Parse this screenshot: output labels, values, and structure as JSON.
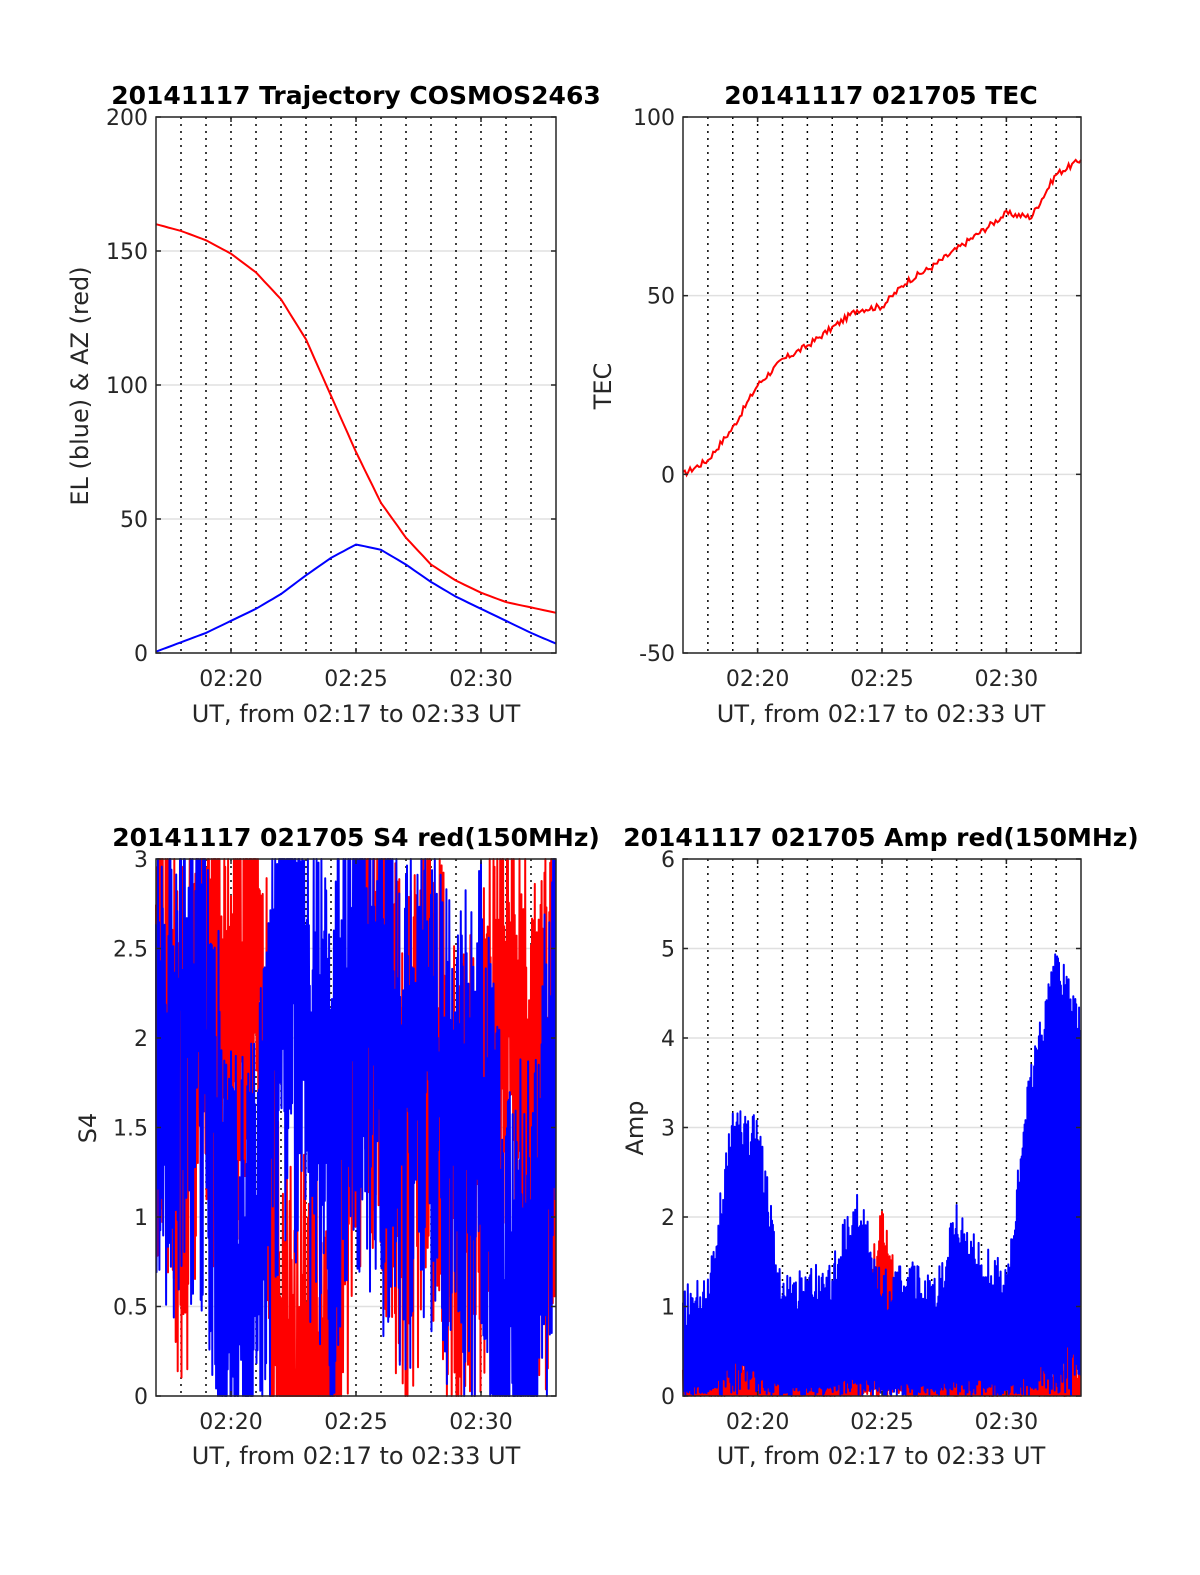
{
  "chart_data": [
    {
      "id": "trajectory",
      "type": "line",
      "title": "20141117 Trajectory COSMOS2463",
      "xlabel": "UT, from 02:17 to 02:33 UT",
      "ylabel": "EL (blue) & AZ (red)",
      "xlim": [
        "02:17",
        "02:33"
      ],
      "ylim": [
        0,
        200
      ],
      "xticks": [
        "02:20",
        "02:25",
        "02:30"
      ],
      "yticks": [
        0,
        50,
        100,
        150,
        200
      ],
      "grid": "dotted vertical lines every 1 min; horizontal gridlines at y ticks",
      "x_minutes": [
        "02:17",
        "02:18",
        "02:19",
        "02:20",
        "02:21",
        "02:22",
        "02:23",
        "02:24",
        "02:25",
        "02:26",
        "02:27",
        "02:28",
        "02:29",
        "02:30",
        "02:31",
        "02:32",
        "02:33"
      ],
      "series": [
        {
          "color": "#ff0000",
          "values": [
            160,
            157.5,
            154,
            149,
            142,
            132,
            117,
            96,
            75,
            56,
            43,
            33,
            27,
            22.5,
            19,
            17,
            15
          ]
        },
        {
          "color": "#0000ff",
          "values": [
            0.5,
            4,
            7.5,
            12,
            16.5,
            22,
            29,
            35.5,
            40.5,
            38.5,
            33,
            26.5,
            21,
            16.5,
            12,
            7.5,
            3.5
          ]
        }
      ]
    },
    {
      "id": "tec",
      "type": "line",
      "title": "20141117 021705 TEC",
      "xlabel": "UT, from 02:17 to 02:33 UT",
      "ylabel": "TEC",
      "xlim": [
        "02:17",
        "02:33"
      ],
      "ylim": [
        -50,
        100
      ],
      "xticks": [
        "02:20",
        "02:25",
        "02:30"
      ],
      "yticks": [
        -50,
        0,
        50,
        100
      ],
      "grid": "dotted vertical lines every 1 min; horizontal gridlines at y ticks",
      "x_minutes": [
        "02:17",
        "02:18",
        "02:19",
        "02:20",
        "02:21",
        "02:22",
        "02:23",
        "02:24",
        "02:25",
        "02:26",
        "02:27",
        "02:28",
        "02:29",
        "02:30",
        "02:31",
        "02:32",
        "02:33"
      ],
      "series": [
        {
          "color": "#ff0000",
          "values": [
            0,
            4,
            13,
            25,
            32,
            36,
            41,
            46,
            47,
            54,
            58,
            63,
            68,
            73,
            72,
            84,
            88
          ]
        }
      ]
    },
    {
      "id": "s4",
      "type": "line",
      "title": "20141117 021705 S4 red(150MHz)",
      "xlabel": "UT, from 02:17 to 02:33 UT",
      "ylabel": "S4",
      "xlim": [
        "02:17",
        "02:33"
      ],
      "ylim": [
        0,
        3
      ],
      "xticks": [
        "02:20",
        "02:25",
        "02:30"
      ],
      "yticks": [
        0,
        0.5,
        1,
        1.5,
        2,
        2.5,
        3
      ],
      "grid": "dotted vertical lines every 1 min; horizontal gridlines at y ticks",
      "x_minutes": [
        "02:17",
        "02:18",
        "02:19",
        "02:20",
        "02:21",
        "02:22",
        "02:23",
        "02:24",
        "02:25",
        "02:26",
        "02:27",
        "02:28",
        "02:29",
        "02:30",
        "02:31",
        "02:32",
        "02:33"
      ],
      "series": [
        {
          "color": "#ff0000",
          "values": [
            2.3,
            1.6,
            2.5,
            1.9,
            2.8,
            0,
            0,
            0,
            2.4,
            2.2,
            1.4,
            2.0,
            1.1,
            1.5,
            2.2,
            1.6,
            1.8
          ]
        },
        {
          "color": "#0000ff",
          "values": [
            1.8,
            2.2,
            2.0,
            0.75,
            0.7,
            2.4,
            2.1,
            1.5,
            2.3,
            2.0,
            1.8,
            2.0,
            1.4,
            1.6,
            0.5,
            0.48,
            2.3
          ]
        }
      ]
    },
    {
      "id": "amp",
      "type": "line",
      "title": "20141117 021705 Amp red(150MHz)",
      "xlabel": "UT, from 02:17 to 02:33 UT",
      "ylabel": "Amp",
      "xlim": [
        "02:17",
        "02:33"
      ],
      "ylim": [
        0,
        6
      ],
      "xticks": [
        "02:20",
        "02:25",
        "02:30"
      ],
      "yticks": [
        0,
        1,
        2,
        3,
        4,
        5,
        6
      ],
      "grid": "dotted vertical lines every 1 min; horizontal gridlines at y ticks",
      "x_minutes": [
        "02:17",
        "02:18",
        "02:19",
        "02:20",
        "02:21",
        "02:22",
        "02:23",
        "02:24",
        "02:25",
        "02:26",
        "02:27",
        "02:28",
        "02:29",
        "02:30",
        "02:31",
        "02:32",
        "02:33"
      ],
      "series": [
        {
          "color": "#ff0000",
          "values": [
            0.1,
            0.1,
            0.1,
            0.1,
            0.1,
            0.1,
            0.1,
            0.1,
            1.75,
            0.1,
            0.1,
            0.1,
            0.1,
            0.1,
            0.1,
            0.15,
            0.1
          ]
        },
        {
          "color": "#0000ff",
          "values": [
            0.7,
            0.8,
            2.7,
            2.6,
            0.8,
            0.9,
            1.0,
            1.9,
            0.9,
            1.0,
            0.8,
            1.6,
            1.2,
            0.9,
            3.3,
            4.5,
            3.8
          ]
        }
      ]
    }
  ]
}
